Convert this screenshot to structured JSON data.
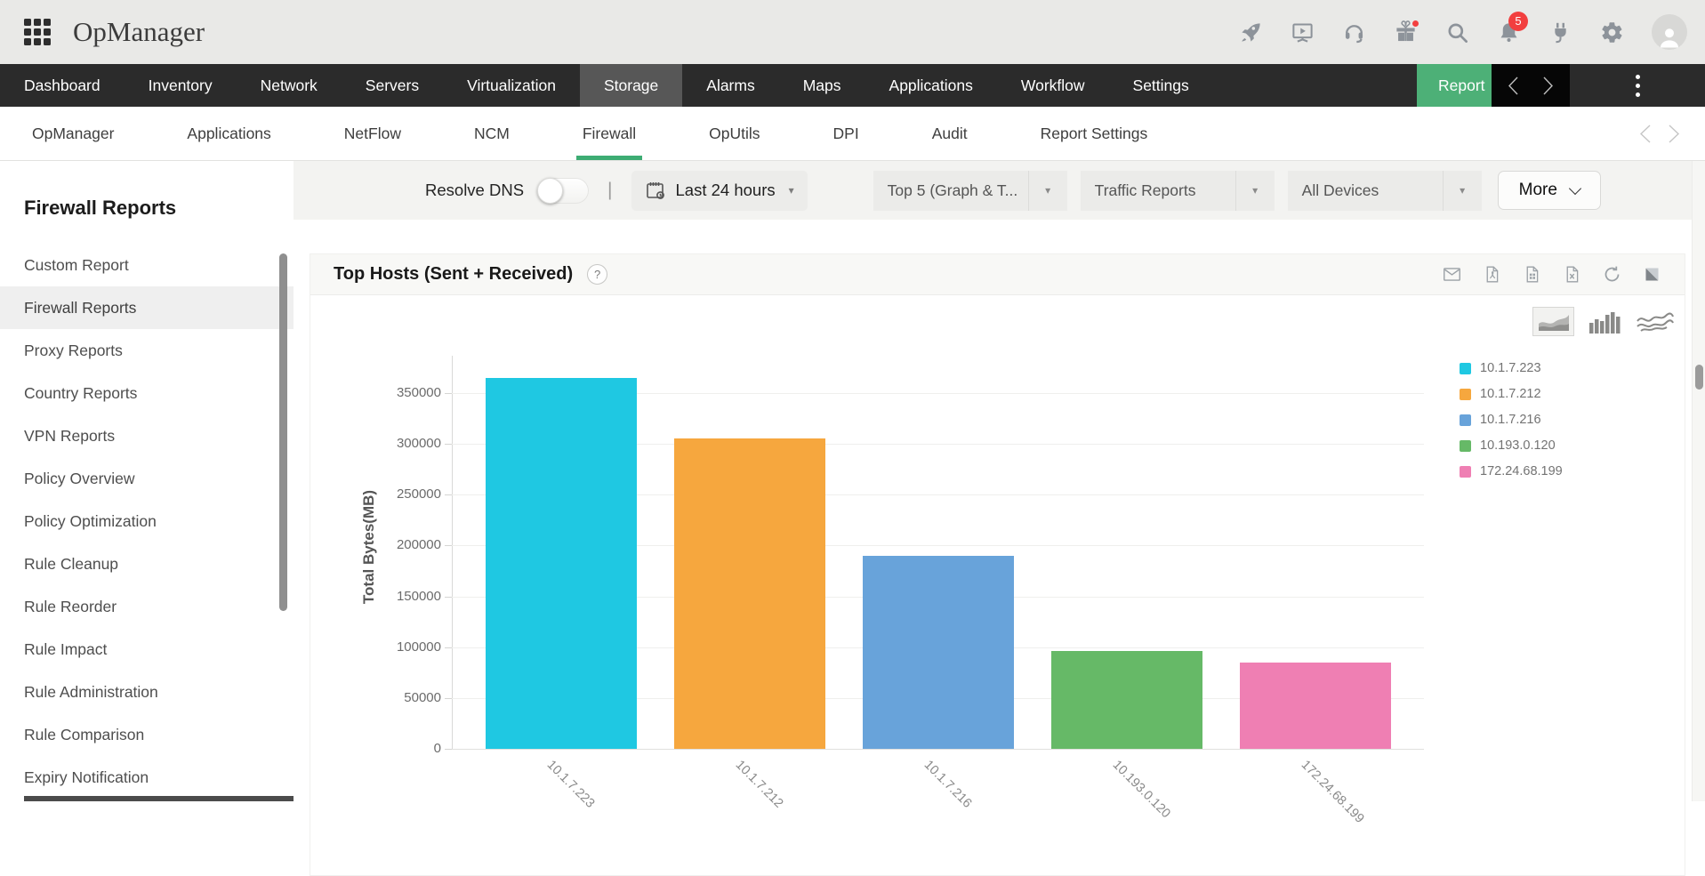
{
  "header": {
    "app_title": "OpManager",
    "notification_badge": "5"
  },
  "nav": {
    "items": [
      {
        "label": "Dashboard"
      },
      {
        "label": "Inventory"
      },
      {
        "label": "Network"
      },
      {
        "label": "Servers"
      },
      {
        "label": "Virtualization"
      },
      {
        "label": "Storage"
      },
      {
        "label": "Alarms"
      },
      {
        "label": "Maps"
      },
      {
        "label": "Applications"
      },
      {
        "label": "Workflow"
      },
      {
        "label": "Settings"
      }
    ],
    "active_item": "Storage",
    "report_tab_label": "Report"
  },
  "subnav": {
    "items": [
      {
        "label": "OpManager"
      },
      {
        "label": "Applications"
      },
      {
        "label": "NetFlow"
      },
      {
        "label": "NCM"
      },
      {
        "label": "Firewall"
      },
      {
        "label": "OpUtils"
      },
      {
        "label": "DPI"
      },
      {
        "label": "Audit"
      },
      {
        "label": "Report Settings"
      }
    ],
    "active_item": "Firewall"
  },
  "sidebar": {
    "title": "Firewall Reports",
    "items": [
      {
        "label": "Custom Report"
      },
      {
        "label": "Firewall Reports"
      },
      {
        "label": "Proxy Reports"
      },
      {
        "label": "Country Reports"
      },
      {
        "label": "VPN Reports"
      },
      {
        "label": "Policy Overview"
      },
      {
        "label": "Policy Optimization"
      },
      {
        "label": "Rule Cleanup"
      },
      {
        "label": "Rule Reorder"
      },
      {
        "label": "Rule Impact"
      },
      {
        "label": "Rule Administration"
      },
      {
        "label": "Rule Comparison"
      },
      {
        "label": "Expiry Notification"
      }
    ],
    "active_item": "Firewall Reports"
  },
  "filters": {
    "resolve_dns_label": "Resolve DNS",
    "separator": "|",
    "time_range_value": "Last 24 hours",
    "top_n_value": "Top 5 (Graph & T...",
    "report_type_value": "Traffic Reports",
    "device_value": "All Devices",
    "more_label": "More"
  },
  "report_panel": {
    "title": "Top Hosts (Sent + Received)",
    "help_glyph": "?"
  },
  "chart_data": {
    "type": "bar",
    "title": "Top Hosts (Sent + Received)",
    "categories": [
      "10.1.7.223",
      "10.1.7.212",
      "10.1.7.216",
      "10.193.0.120",
      "172.24.68.199"
    ],
    "values": [
      365000,
      305000,
      190000,
      96000,
      85000
    ],
    "bar_colors": [
      "#1fc8e2",
      "#f6a73e",
      "#68a3da",
      "#66b967",
      "#ef7fb3"
    ],
    "xlabel": "",
    "ylabel": "Total Bytes(MB)",
    "ylim": [
      0,
      370000
    ],
    "yticks": [
      0,
      50000,
      100000,
      150000,
      200000,
      250000,
      300000,
      350000
    ],
    "grid": true,
    "legend_position": "right",
    "legend": [
      {
        "label": "10.1.7.223",
        "color": "#1fc8e2"
      },
      {
        "label": "10.1.7.212",
        "color": "#f6a73e"
      },
      {
        "label": "10.1.7.216",
        "color": "#68a3da"
      },
      {
        "label": "10.193.0.120",
        "color": "#66b967"
      },
      {
        "label": "172.24.68.199",
        "color": "#ef7fb3"
      }
    ]
  }
}
